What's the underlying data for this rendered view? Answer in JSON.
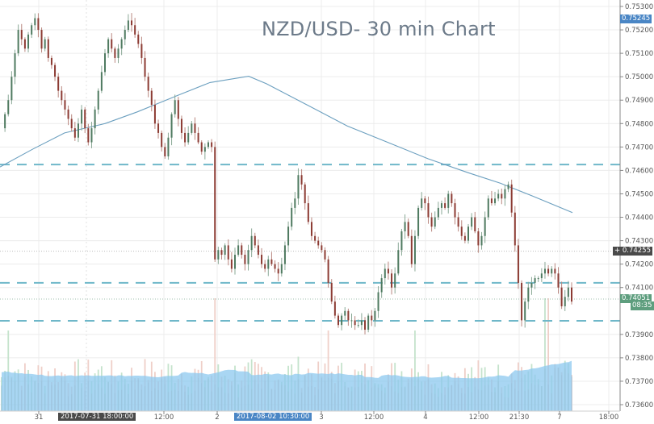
{
  "chart_data": {
    "type": "candlestick",
    "title": "NZD/USD- 30 min Chart",
    "instrument": "NZD/USD",
    "timeframe": "30 min",
    "xlabel": "",
    "ylabel": "",
    "ylim": [
      0.736,
      0.753
    ],
    "y_ticks": [
      "0.75300",
      "0.75200",
      "0.75100",
      "0.75000",
      "0.74900",
      "0.74800",
      "0.74700",
      "0.74600",
      "0.74500",
      "0.74400",
      "0.74300",
      "0.74200",
      "0.74100",
      "0.73900",
      "0.73800",
      "0.73700",
      "0.73600"
    ],
    "x_ticks": [
      {
        "label": "31",
        "x": 48
      },
      {
        "label": "12:00",
        "x": 203
      },
      {
        "label": "2",
        "x": 269
      },
      {
        "label": "3",
        "x": 398
      },
      {
        "label": "12:00",
        "x": 463
      },
      {
        "label": "4",
        "x": 527
      },
      {
        "label": "12:00",
        "x": 593
      },
      {
        "label": "21:30",
        "x": 643
      },
      {
        "label": "7",
        "x": 693
      },
      {
        "label": "18:00",
        "x": 754
      }
    ],
    "crosshair_x_labels": [
      {
        "label": "2017-07-31 18:00:00",
        "x": 72,
        "color": "#4a4a4a"
      },
      {
        "label": "2017-08-02 10:30:00",
        "x": 290,
        "color": "#4a86c5"
      }
    ],
    "price_tags": [
      {
        "label": "0.75245",
        "price": 0.75245,
        "color": "#4a86c5"
      },
      {
        "label": "0.74255",
        "price": 0.74255,
        "color": "#4a4a4a"
      },
      {
        "label": "0.74051",
        "price": 0.74051,
        "color": "#5e9e7e"
      },
      {
        "label": "08:35",
        "price": 0.7402,
        "color": "#5e9e7e"
      }
    ],
    "horizontal_levels": [
      {
        "price": 0.74625,
        "style": "dashed",
        "color": "#6fb7c9"
      },
      {
        "price": 0.7412,
        "style": "dashed",
        "color": "#6fb7c9"
      },
      {
        "price": 0.73958,
        "style": "dashed",
        "color": "#6fb7c9"
      },
      {
        "price": 0.74255,
        "style": "dotted",
        "color": "#bbbbbb"
      },
      {
        "price": 0.74051,
        "style": "dotted",
        "color": "#9fbfae"
      }
    ],
    "moving_average": {
      "color": "#6b9fbf",
      "points": [
        [
          0,
          0.74615
        ],
        [
          40,
          0.7469
        ],
        [
          80,
          0.7476
        ],
        [
          130,
          0.748
        ],
        [
          170,
          0.7485
        ],
        [
          220,
          0.7492
        ],
        [
          260,
          0.74975
        ],
        [
          308,
          0.75002
        ],
        [
          330,
          0.7497
        ],
        [
          380,
          0.7488
        ],
        [
          430,
          0.7479
        ],
        [
          480,
          0.7472
        ],
        [
          530,
          0.7465
        ],
        [
          580,
          0.7459
        ],
        [
          620,
          0.74545
        ],
        [
          660,
          0.7449
        ],
        [
          709,
          0.7442
        ]
      ]
    },
    "candle_path": [
      0.7478,
      0.7484,
      0.749,
      0.75,
      0.751,
      0.752,
      0.7516,
      0.7512,
      0.7518,
      0.7522,
      0.7525,
      0.752,
      0.7512,
      0.7516,
      0.7508,
      0.7505,
      0.75,
      0.7494,
      0.749,
      0.7486,
      0.7482,
      0.7478,
      0.7474,
      0.748,
      0.7486,
      0.7478,
      0.7472,
      0.7478,
      0.7486,
      0.7494,
      0.7502,
      0.751,
      0.7516,
      0.7512,
      0.7508,
      0.7512,
      0.7516,
      0.752,
      0.7524,
      0.7522,
      0.7518,
      0.7514,
      0.7508,
      0.75,
      0.7494,
      0.7488,
      0.748,
      0.7476,
      0.747,
      0.7466,
      0.7474,
      0.7484,
      0.749,
      0.7482,
      0.7476,
      0.7472,
      0.7476,
      0.748,
      0.7476,
      0.7472,
      0.7468,
      0.747,
      0.7472,
      0.747,
      0.7422,
      0.7426,
      0.7424,
      0.7428,
      0.7422,
      0.7418,
      0.7424,
      0.7428,
      0.7424,
      0.742,
      0.7426,
      0.7432,
      0.7428,
      0.7424,
      0.742,
      0.7418,
      0.7422,
      0.742,
      0.7418,
      0.7416,
      0.742,
      0.7428,
      0.7436,
      0.7444,
      0.7448,
      0.7458,
      0.7454,
      0.7446,
      0.7438,
      0.7432,
      0.743,
      0.7428,
      0.7426,
      0.7422,
      0.7412,
      0.7404,
      0.7398,
      0.7394,
      0.7398,
      0.74,
      0.7396,
      0.7396,
      0.7394,
      0.7394,
      0.7396,
      0.7392,
      0.7398,
      0.7396,
      0.74,
      0.7408,
      0.7414,
      0.7418,
      0.7416,
      0.741,
      0.7416,
      0.7426,
      0.7434,
      0.7438,
      0.7432,
      0.742,
      0.7432,
      0.7444,
      0.7448,
      0.7446,
      0.744,
      0.7436,
      0.744,
      0.7444,
      0.7446,
      0.7444,
      0.745,
      0.7446,
      0.744,
      0.7436,
      0.7432,
      0.743,
      0.7436,
      0.744,
      0.7434,
      0.7428,
      0.7432,
      0.744,
      0.7448,
      0.7446,
      0.7448,
      0.745,
      0.7448,
      0.7452,
      0.7454,
      0.7442,
      0.7428,
      0.7412,
      0.7396,
      0.7404,
      0.741,
      0.7412,
      0.7414,
      0.7414,
      0.7416,
      0.7418,
      0.7416,
      0.7418,
      0.7416,
      0.741,
      0.7402,
      0.7406,
      0.741,
      0.7404
    ],
    "volume": {
      "ma_color": "#8cc8ef",
      "up_color": "#c5e3cc",
      "down_color": "#efcfc8",
      "bar_color": "#9cc4df"
    }
  }
}
